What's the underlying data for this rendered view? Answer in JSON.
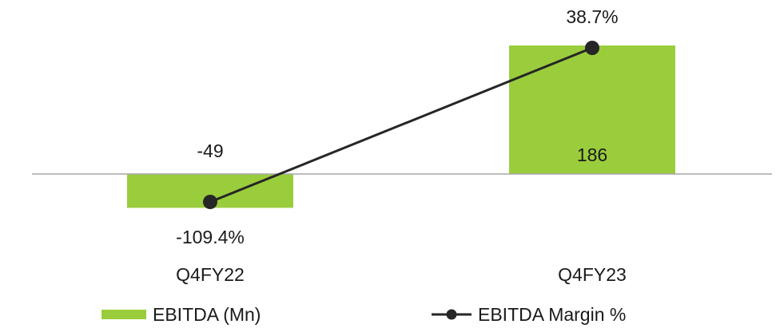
{
  "chart_data": {
    "type": "bar",
    "categories": [
      "Q4FY22",
      "Q4FY23"
    ],
    "series": [
      {
        "name": "EBITDA (Mn)",
        "kind": "bar",
        "values": [
          -49,
          186
        ],
        "value_labels": [
          "-49",
          "186"
        ],
        "color": "#9ACD3C"
      },
      {
        "name": "EBITDA Margin %",
        "kind": "line",
        "values": [
          -109.4,
          38.7
        ],
        "value_labels": [
          "-109.4%",
          "38.7%"
        ],
        "color": "#262626"
      }
    ],
    "title": "",
    "xlabel": "",
    "ylabel": "",
    "grid": false,
    "legend": "bottom"
  }
}
